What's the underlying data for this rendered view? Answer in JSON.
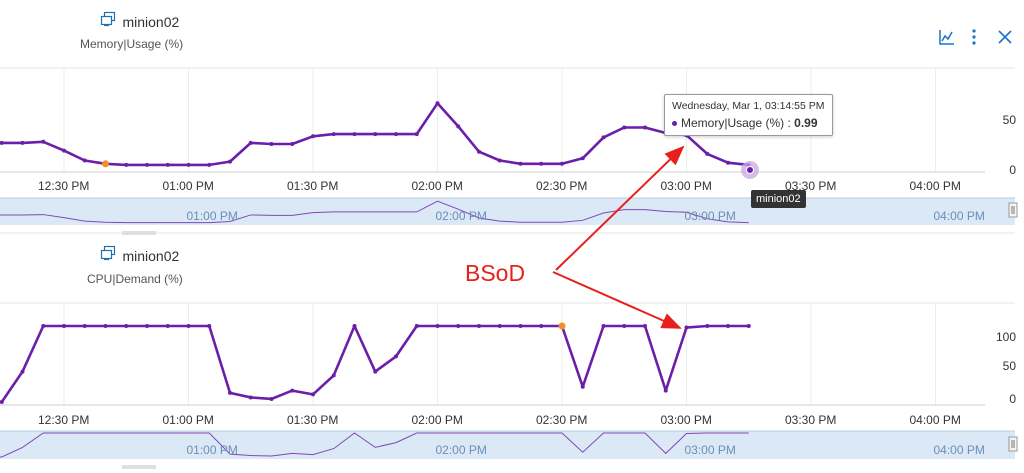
{
  "toolbar": {
    "icons": [
      "chart-settings-icon",
      "more-vertical-icon",
      "close-icon"
    ],
    "accent": "#1a73c8"
  },
  "colors": {
    "line": "#6b1fa8",
    "marker": "#f0902a",
    "navigator_bg": "#dbe8f5",
    "arrow": "#e8201c"
  },
  "annotation": {
    "text": "BSoD"
  },
  "charts": [
    {
      "object_name": "minion02",
      "metric": "Memory|Usage (%)",
      "x_ticks": [
        "12:30 PM",
        "01:00 PM",
        "01:30 PM",
        "02:00 PM",
        "02:30 PM",
        "03:00 PM",
        "03:30 PM",
        "04:00 PM"
      ],
      "y_ticks": [
        "50",
        "0"
      ],
      "navigator_ticks": [
        "01:00 PM",
        "02:00 PM",
        "03:00 PM",
        "04:00 PM"
      ],
      "tooltip": {
        "date": "Wednesday, Mar 1, 03:14:55 PM",
        "label": "Memory|Usage (%) :",
        "value": "0.99"
      },
      "hover_badge": "minion02"
    },
    {
      "object_name": "minion02",
      "metric": "CPU|Demand (%)",
      "x_ticks": [
        "12:30 PM",
        "01:00 PM",
        "01:30 PM",
        "02:00 PM",
        "02:30 PM",
        "03:00 PM",
        "03:30 PM",
        "04:00 PM"
      ],
      "y_ticks": [
        "100",
        "50",
        "0"
      ],
      "navigator_ticks": [
        "01:00 PM",
        "02:00 PM",
        "03:00 PM",
        "04:00 PM"
      ]
    }
  ],
  "chart_data": [
    {
      "type": "line",
      "title": "Memory|Usage (%)",
      "ylim": [
        0,
        80
      ],
      "x": [
        "12:05 PM",
        "12:10 PM",
        "12:15 PM",
        "12:20 PM",
        "12:25 PM",
        "12:30 PM",
        "12:35 PM",
        "12:40 PM",
        "12:45 PM",
        "12:50 PM",
        "12:55 PM",
        "01:00 PM",
        "01:05 PM",
        "01:10 PM",
        "01:15 PM",
        "01:20 PM",
        "01:25 PM",
        "01:30 PM",
        "01:35 PM",
        "01:40 PM",
        "01:45 PM",
        "01:50 PM",
        "01:55 PM",
        "02:00 PM",
        "02:05 PM",
        "02:10 PM",
        "02:15 PM",
        "02:20 PM",
        "02:25 PM",
        "02:30 PM",
        "02:35 PM",
        "02:40 PM",
        "02:45 PM",
        "02:50 PM",
        "02:55 PM",
        "03:00 PM",
        "03:05 PM",
        "03:10 PM",
        "03:15 PM"
      ],
      "values": [
        21,
        21,
        21,
        21,
        22,
        14,
        5,
        2,
        1,
        1,
        1,
        1,
        1,
        4,
        21,
        20,
        20,
        27,
        29,
        29,
        29,
        29,
        29,
        57,
        36,
        13,
        5,
        2,
        2,
        2,
        7,
        26,
        35,
        35,
        30,
        28,
        11,
        3,
        1
      ],
      "highlight_index": 7
    },
    {
      "type": "line",
      "title": "CPU|Demand (%)",
      "ylim": [
        0,
        110
      ],
      "x": [
        "12:05 PM",
        "12:10 PM",
        "12:15 PM",
        "12:20 PM",
        "12:25 PM",
        "12:30 PM",
        "12:35 PM",
        "12:40 PM",
        "12:45 PM",
        "12:50 PM",
        "12:55 PM",
        "01:00 PM",
        "01:05 PM",
        "01:10 PM",
        "01:15 PM",
        "01:20 PM",
        "01:25 PM",
        "01:30 PM",
        "01:35 PM",
        "01:40 PM",
        "01:45 PM",
        "01:50 PM",
        "01:55 PM",
        "02:00 PM",
        "02:05 PM",
        "02:10 PM",
        "02:15 PM",
        "02:20 PM",
        "02:25 PM",
        "02:30 PM",
        "02:35 PM",
        "02:40 PM",
        "02:45 PM",
        "02:50 PM",
        "02:55 PM",
        "03:00 PM",
        "03:05 PM",
        "03:10 PM",
        "03:15 PM"
      ],
      "values": [
        0,
        0,
        0,
        40,
        100,
        100,
        100,
        100,
        100,
        100,
        100,
        100,
        100,
        12,
        6,
        4,
        15,
        10,
        35,
        100,
        40,
        60,
        100,
        100,
        100,
        100,
        100,
        100,
        100,
        100,
        20,
        100,
        100,
        100,
        15,
        98,
        100,
        100,
        100
      ],
      "highlight_index": 29
    }
  ]
}
